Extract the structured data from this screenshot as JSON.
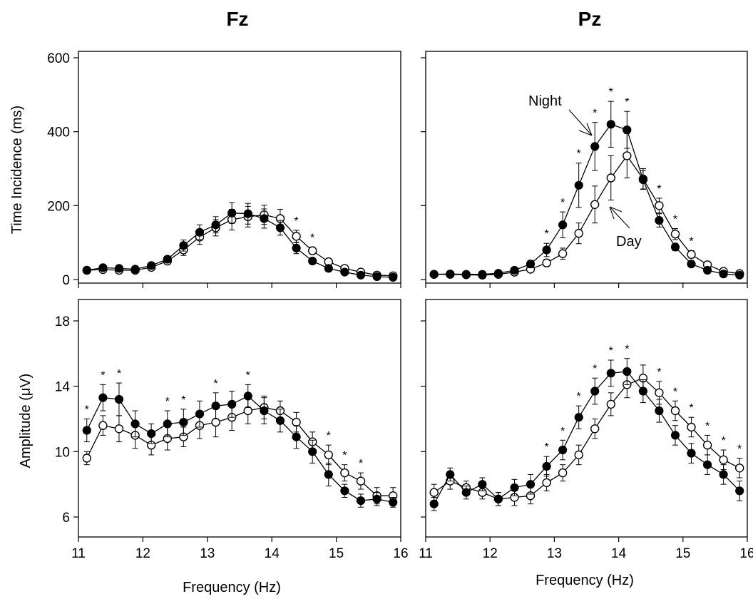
{
  "column_titles": [
    "Fz",
    "Pz"
  ],
  "y_label_top": "Time Incidence (ms)",
  "y_label_bottom": "Amplitude (μV)",
  "x_label": "Frequency (Hz)",
  "annotations": {
    "night": "Night",
    "day": "Day"
  },
  "significance_marker": "*",
  "colors": {
    "night": "#000000",
    "day": "#ffffff",
    "stroke": "#000000"
  },
  "chart_data": [
    {
      "type": "line",
      "position": "top-left",
      "title": "Fz",
      "xlabel": "",
      "ylabel": "Time Incidence (ms)",
      "xlim": [
        11,
        16
      ],
      "ylim": [
        0,
        600
      ],
      "xticks": [
        11,
        12,
        13,
        14,
        15,
        16
      ],
      "yticks": [
        0,
        200,
        400,
        600
      ],
      "x": [
        11.13,
        11.38,
        11.63,
        11.88,
        12.13,
        12.38,
        12.63,
        12.88,
        13.13,
        13.38,
        13.63,
        13.88,
        14.13,
        14.38,
        14.63,
        14.88,
        15.13,
        15.38,
        15.63,
        15.88
      ],
      "series": [
        {
          "name": "Night",
          "values": [
            25,
            32,
            30,
            28,
            38,
            55,
            92,
            128,
            148,
            180,
            178,
            165,
            140,
            85,
            50,
            30,
            20,
            12,
            8,
            6
          ],
          "errors": [
            5,
            6,
            5,
            5,
            6,
            8,
            15,
            20,
            22,
            28,
            28,
            26,
            20,
            15,
            8,
            6,
            5,
            4,
            3,
            3
          ]
        },
        {
          "name": "Day",
          "values": [
            25,
            27,
            25,
            25,
            33,
            50,
            80,
            115,
            140,
            162,
            170,
            175,
            165,
            117,
            78,
            48,
            30,
            20,
            12,
            10
          ],
          "errors": [
            5,
            5,
            5,
            5,
            6,
            8,
            15,
            20,
            22,
            28,
            28,
            26,
            25,
            16,
            10,
            8,
            6,
            5,
            4,
            4
          ]
        }
      ],
      "significant_x": [
        14.38,
        14.63
      ],
      "grid": false
    },
    {
      "type": "line",
      "position": "top-right",
      "title": "Pz",
      "xlabel": "",
      "ylabel": "",
      "xlim": [
        11,
        16
      ],
      "ylim": [
        0,
        600
      ],
      "xticks": [
        11,
        12,
        13,
        14,
        15,
        16
      ],
      "yticks": [
        0,
        200,
        400,
        600
      ],
      "x": [
        11.13,
        11.38,
        11.63,
        11.88,
        12.13,
        12.38,
        12.63,
        12.88,
        13.13,
        13.38,
        13.63,
        13.88,
        14.13,
        14.38,
        14.63,
        14.88,
        15.13,
        15.38,
        15.63,
        15.88
      ],
      "series": [
        {
          "name": "Night",
          "values": [
            14,
            15,
            14,
            14,
            17,
            25,
            42,
            80,
            148,
            255,
            360,
            420,
            405,
            270,
            160,
            88,
            42,
            25,
            15,
            12
          ],
          "errors": [
            3,
            3,
            3,
            3,
            4,
            6,
            10,
            18,
            35,
            60,
            65,
            62,
            50,
            25,
            18,
            10,
            6,
            5,
            4,
            3
          ]
        },
        {
          "name": "Day",
          "values": [
            14,
            14,
            13,
            12,
            14,
            20,
            28,
            45,
            70,
            125,
            203,
            275,
            335,
            272,
            200,
            123,
            68,
            40,
            22,
            16
          ],
          "errors": [
            3,
            3,
            3,
            3,
            4,
            5,
            7,
            10,
            15,
            28,
            50,
            60,
            60,
            28,
            20,
            15,
            10,
            6,
            4,
            3
          ]
        }
      ],
      "significant_x": [
        12.88,
        13.13,
        13.38,
        13.63,
        13.88,
        14.13,
        14.63,
        14.88,
        15.13
      ],
      "grid": false
    },
    {
      "type": "line",
      "position": "bottom-left",
      "title": "",
      "xlabel": "Frequency (Hz)",
      "ylabel": "Amplitude (μV)",
      "xlim": [
        11,
        16
      ],
      "ylim": [
        5,
        19
      ],
      "xticks": [
        11,
        12,
        13,
        14,
        15,
        16
      ],
      "yticks": [
        6,
        10,
        14,
        18
      ],
      "x": [
        11.13,
        11.38,
        11.63,
        11.88,
        12.13,
        12.38,
        12.63,
        12.88,
        13.13,
        13.38,
        13.63,
        13.88,
        14.13,
        14.38,
        14.63,
        14.88,
        15.13,
        15.38,
        15.63,
        15.88
      ],
      "series": [
        {
          "name": "Night",
          "values": [
            11.3,
            13.3,
            13.2,
            11.7,
            11.1,
            11.7,
            11.8,
            12.3,
            12.8,
            12.9,
            13.4,
            12.5,
            11.9,
            10.9,
            10.0,
            8.6,
            7.6,
            7.0,
            7.1,
            6.9
          ],
          "errors": [
            0.7,
            0.8,
            1.0,
            0.8,
            0.6,
            0.8,
            0.8,
            0.8,
            0.8,
            0.8,
            0.7,
            0.8,
            0.7,
            0.7,
            0.7,
            0.7,
            0.4,
            0.4,
            0.4,
            0.3
          ]
        },
        {
          "name": "Day",
          "values": [
            9.6,
            11.6,
            11.4,
            11.0,
            10.4,
            10.8,
            10.9,
            11.6,
            11.8,
            12.1,
            12.5,
            12.7,
            12.5,
            11.8,
            10.6,
            9.8,
            8.7,
            8.2,
            7.3,
            7.3
          ],
          "errors": [
            0.4,
            0.6,
            0.8,
            0.8,
            0.6,
            0.7,
            0.6,
            0.8,
            0.9,
            0.8,
            0.8,
            0.7,
            0.6,
            0.6,
            0.6,
            0.6,
            0.5,
            0.5,
            0.5,
            0.5
          ]
        }
      ],
      "significant_x": [
        11.13,
        11.38,
        11.63,
        12.38,
        12.63,
        13.13,
        13.63,
        14.88,
        15.13,
        15.38
      ],
      "grid": false
    },
    {
      "type": "line",
      "position": "bottom-right",
      "title": "",
      "xlabel": "Frequency (Hz)",
      "ylabel": "",
      "xlim": [
        11,
        16
      ],
      "ylim": [
        5,
        19
      ],
      "xticks": [
        11,
        12,
        13,
        14,
        15,
        16
      ],
      "yticks": [
        6,
        10,
        14,
        18
      ],
      "x": [
        11.13,
        11.38,
        11.63,
        11.88,
        12.13,
        12.38,
        12.63,
        12.88,
        13.13,
        13.38,
        13.63,
        13.88,
        14.13,
        14.38,
        14.63,
        14.88,
        15.13,
        15.38,
        15.63,
        15.88
      ],
      "series": [
        {
          "name": "Night",
          "values": [
            6.8,
            8.6,
            7.5,
            8.0,
            7.1,
            7.8,
            8.0,
            9.1,
            10.1,
            12.1,
            13.7,
            14.8,
            14.9,
            13.7,
            12.5,
            11.0,
            9.9,
            9.2,
            8.6,
            7.6
          ],
          "errors": [
            0.4,
            0.4,
            0.4,
            0.4,
            0.4,
            0.5,
            0.6,
            0.6,
            0.6,
            0.7,
            0.8,
            0.8,
            0.8,
            0.7,
            0.7,
            0.6,
            0.6,
            0.6,
            0.6,
            0.6
          ]
        },
        {
          "name": "Day",
          "values": [
            7.5,
            8.2,
            7.8,
            7.5,
            7.1,
            7.2,
            7.3,
            8.1,
            8.7,
            9.8,
            11.4,
            12.9,
            14.1,
            14.5,
            13.6,
            12.5,
            11.5,
            10.4,
            9.5,
            9.0
          ],
          "errors": [
            0.5,
            0.5,
            0.4,
            0.4,
            0.4,
            0.5,
            0.5,
            0.5,
            0.5,
            0.6,
            0.6,
            0.7,
            0.8,
            0.8,
            0.7,
            0.6,
            0.6,
            0.6,
            0.6,
            0.6
          ]
        }
      ],
      "significant_x": [
        12.88,
        13.13,
        13.38,
        13.63,
        13.88,
        14.13,
        14.63,
        14.88,
        15.13,
        15.38,
        15.63,
        15.88
      ],
      "grid": false
    }
  ]
}
